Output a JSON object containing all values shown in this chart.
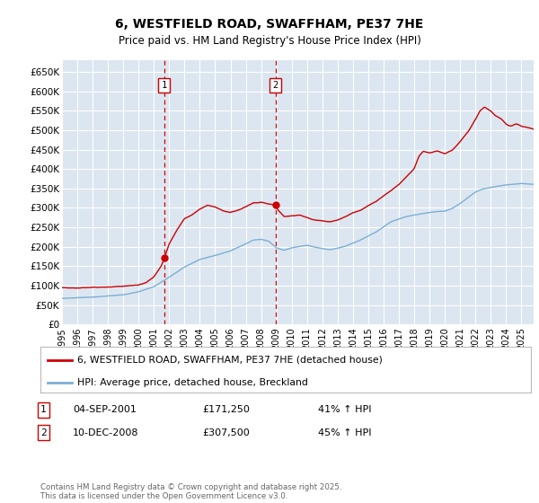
{
  "title": "6, WESTFIELD ROAD, SWAFFHAM, PE37 7HE",
  "subtitle": "Price paid vs. HM Land Registry's House Price Index (HPI)",
  "ylim": [
    0,
    680000
  ],
  "xlim_start": 1995.0,
  "xlim_end": 2025.8,
  "line1_color": "#cc0000",
  "line2_color": "#7bafd4",
  "line1_label": "6, WESTFIELD ROAD, SWAFFHAM, PE37 7HE (detached house)",
  "line2_label": "HPI: Average price, detached house, Breckland",
  "marker1_date": 2001.67,
  "marker1_price": 171250,
  "marker2_date": 2008.94,
  "marker2_price": 307500,
  "marker1_label": "1",
  "marker2_label": "2",
  "footer": "Contains HM Land Registry data © Crown copyright and database right 2025.\nThis data is licensed under the Open Government Licence v3.0.",
  "plot_bg_color": "#dce6f1",
  "grid_color": "#ffffff",
  "fig_bg_color": "#ffffff",
  "tick_vals": [
    0,
    50000,
    100000,
    150000,
    200000,
    250000,
    300000,
    350000,
    400000,
    450000,
    500000,
    550000,
    600000,
    650000
  ],
  "tick_labels": [
    "£0",
    "£50K",
    "£100K",
    "£150K",
    "£200K",
    "£250K",
    "£300K",
    "£350K",
    "£400K",
    "£450K",
    "£500K",
    "£550K",
    "£600K",
    "£650K"
  ]
}
